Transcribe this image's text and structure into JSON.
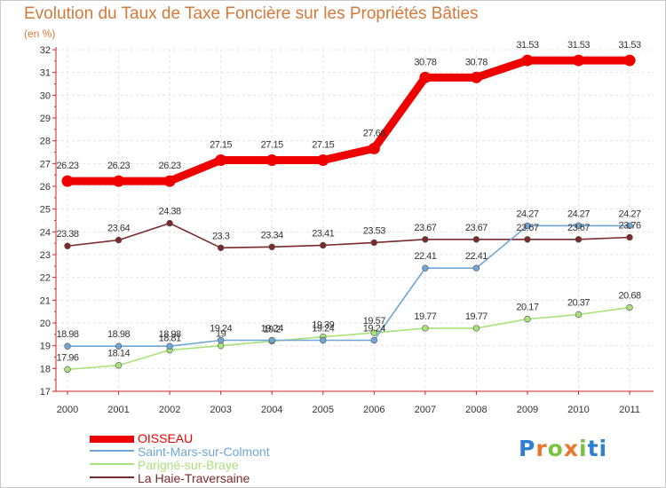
{
  "page": {
    "title": "Evolution du Taux de Taxe Foncière sur les Propriétés Bâties",
    "subtitle": "(en %)"
  },
  "chart_data": {
    "type": "line",
    "title": "Evolution du Taux de Taxe Foncière sur les Propriétés Bâties",
    "ylabel": "(en %)",
    "xlabel": "",
    "ylim": [
      17,
      32
    ],
    "yticks": [
      17,
      18,
      19,
      20,
      21,
      22,
      23,
      24,
      25,
      26,
      27,
      28,
      29,
      30,
      31,
      32
    ],
    "grid": true,
    "legend_position": "bottom-left",
    "categories": [
      "2000",
      "2001",
      "2002",
      "2003",
      "2004",
      "2005",
      "2006",
      "2007",
      "2008",
      "2009",
      "2010",
      "2011"
    ],
    "series": [
      {
        "name": "OISSEAU",
        "color": "#ee0000",
        "values": [
          26.23,
          26.23,
          26.23,
          27.15,
          27.15,
          27.15,
          27.66,
          30.78,
          30.78,
          31.53,
          31.53,
          31.53
        ],
        "labels": [
          "26.23",
          "26.23",
          "26.23",
          "27.15",
          "27.15",
          "27.15",
          "27.66",
          "30.78",
          "30.78",
          "31.53",
          "31.53",
          "31.53"
        ]
      },
      {
        "name": "Saint-Mars-sur-Colmont",
        "color": "#6fa6d6",
        "values": [
          18.98,
          18.98,
          18.98,
          19.24,
          19.24,
          19.24,
          19.24,
          22.41,
          22.41,
          24.27,
          24.27,
          24.27
        ],
        "labels": [
          "18.98",
          "18.98",
          "18.98",
          "19.24",
          "19.24",
          "19.24",
          "19.24",
          "22.41",
          "22.41",
          "24.27",
          "24.27",
          "24.27"
        ]
      },
      {
        "name": "Parigné-sur-Braye",
        "color": "#a8e27a",
        "values": [
          17.96,
          18.14,
          18.81,
          19,
          19.2,
          19.39,
          19.57,
          19.77,
          19.77,
          20.17,
          20.37,
          20.68
        ],
        "labels": [
          "17.96",
          "18.14",
          "18.81",
          "19",
          "19.2",
          "19.39",
          "19.57",
          "19.77",
          "19.77",
          "20.17",
          "20.37",
          "20.68"
        ]
      },
      {
        "name": "La Haie-Traversaine",
        "color": "#7a2a2a",
        "values": [
          23.38,
          23.64,
          24.38,
          23.3,
          23.34,
          23.41,
          23.53,
          23.67,
          23.67,
          23.67,
          23.67,
          23.76
        ],
        "labels": [
          "23.38",
          "23.64",
          "24.38",
          "23.3",
          "23.34",
          "23.41",
          "23.53",
          "23.67",
          "23.67",
          "23.67",
          "23.67",
          "23.76"
        ]
      }
    ]
  },
  "legend": {
    "items": [
      {
        "label": "OISSEAU",
        "color": "#ee0000"
      },
      {
        "label": "Saint-Mars-sur-Colmont",
        "color": "#6fa6d6"
      },
      {
        "label": "Parigné-sur-Braye",
        "color": "#a8e27a"
      },
      {
        "label": "La Haie-Traversaine",
        "color": "#7a2a2a"
      }
    ]
  },
  "logo": {
    "text": "Proxiti",
    "colors": [
      "#2e7fd1",
      "#e8772e",
      "#7cc142",
      "#e8772e",
      "#7cc142",
      "#2e7fd1",
      "#2e7fd1"
    ]
  }
}
